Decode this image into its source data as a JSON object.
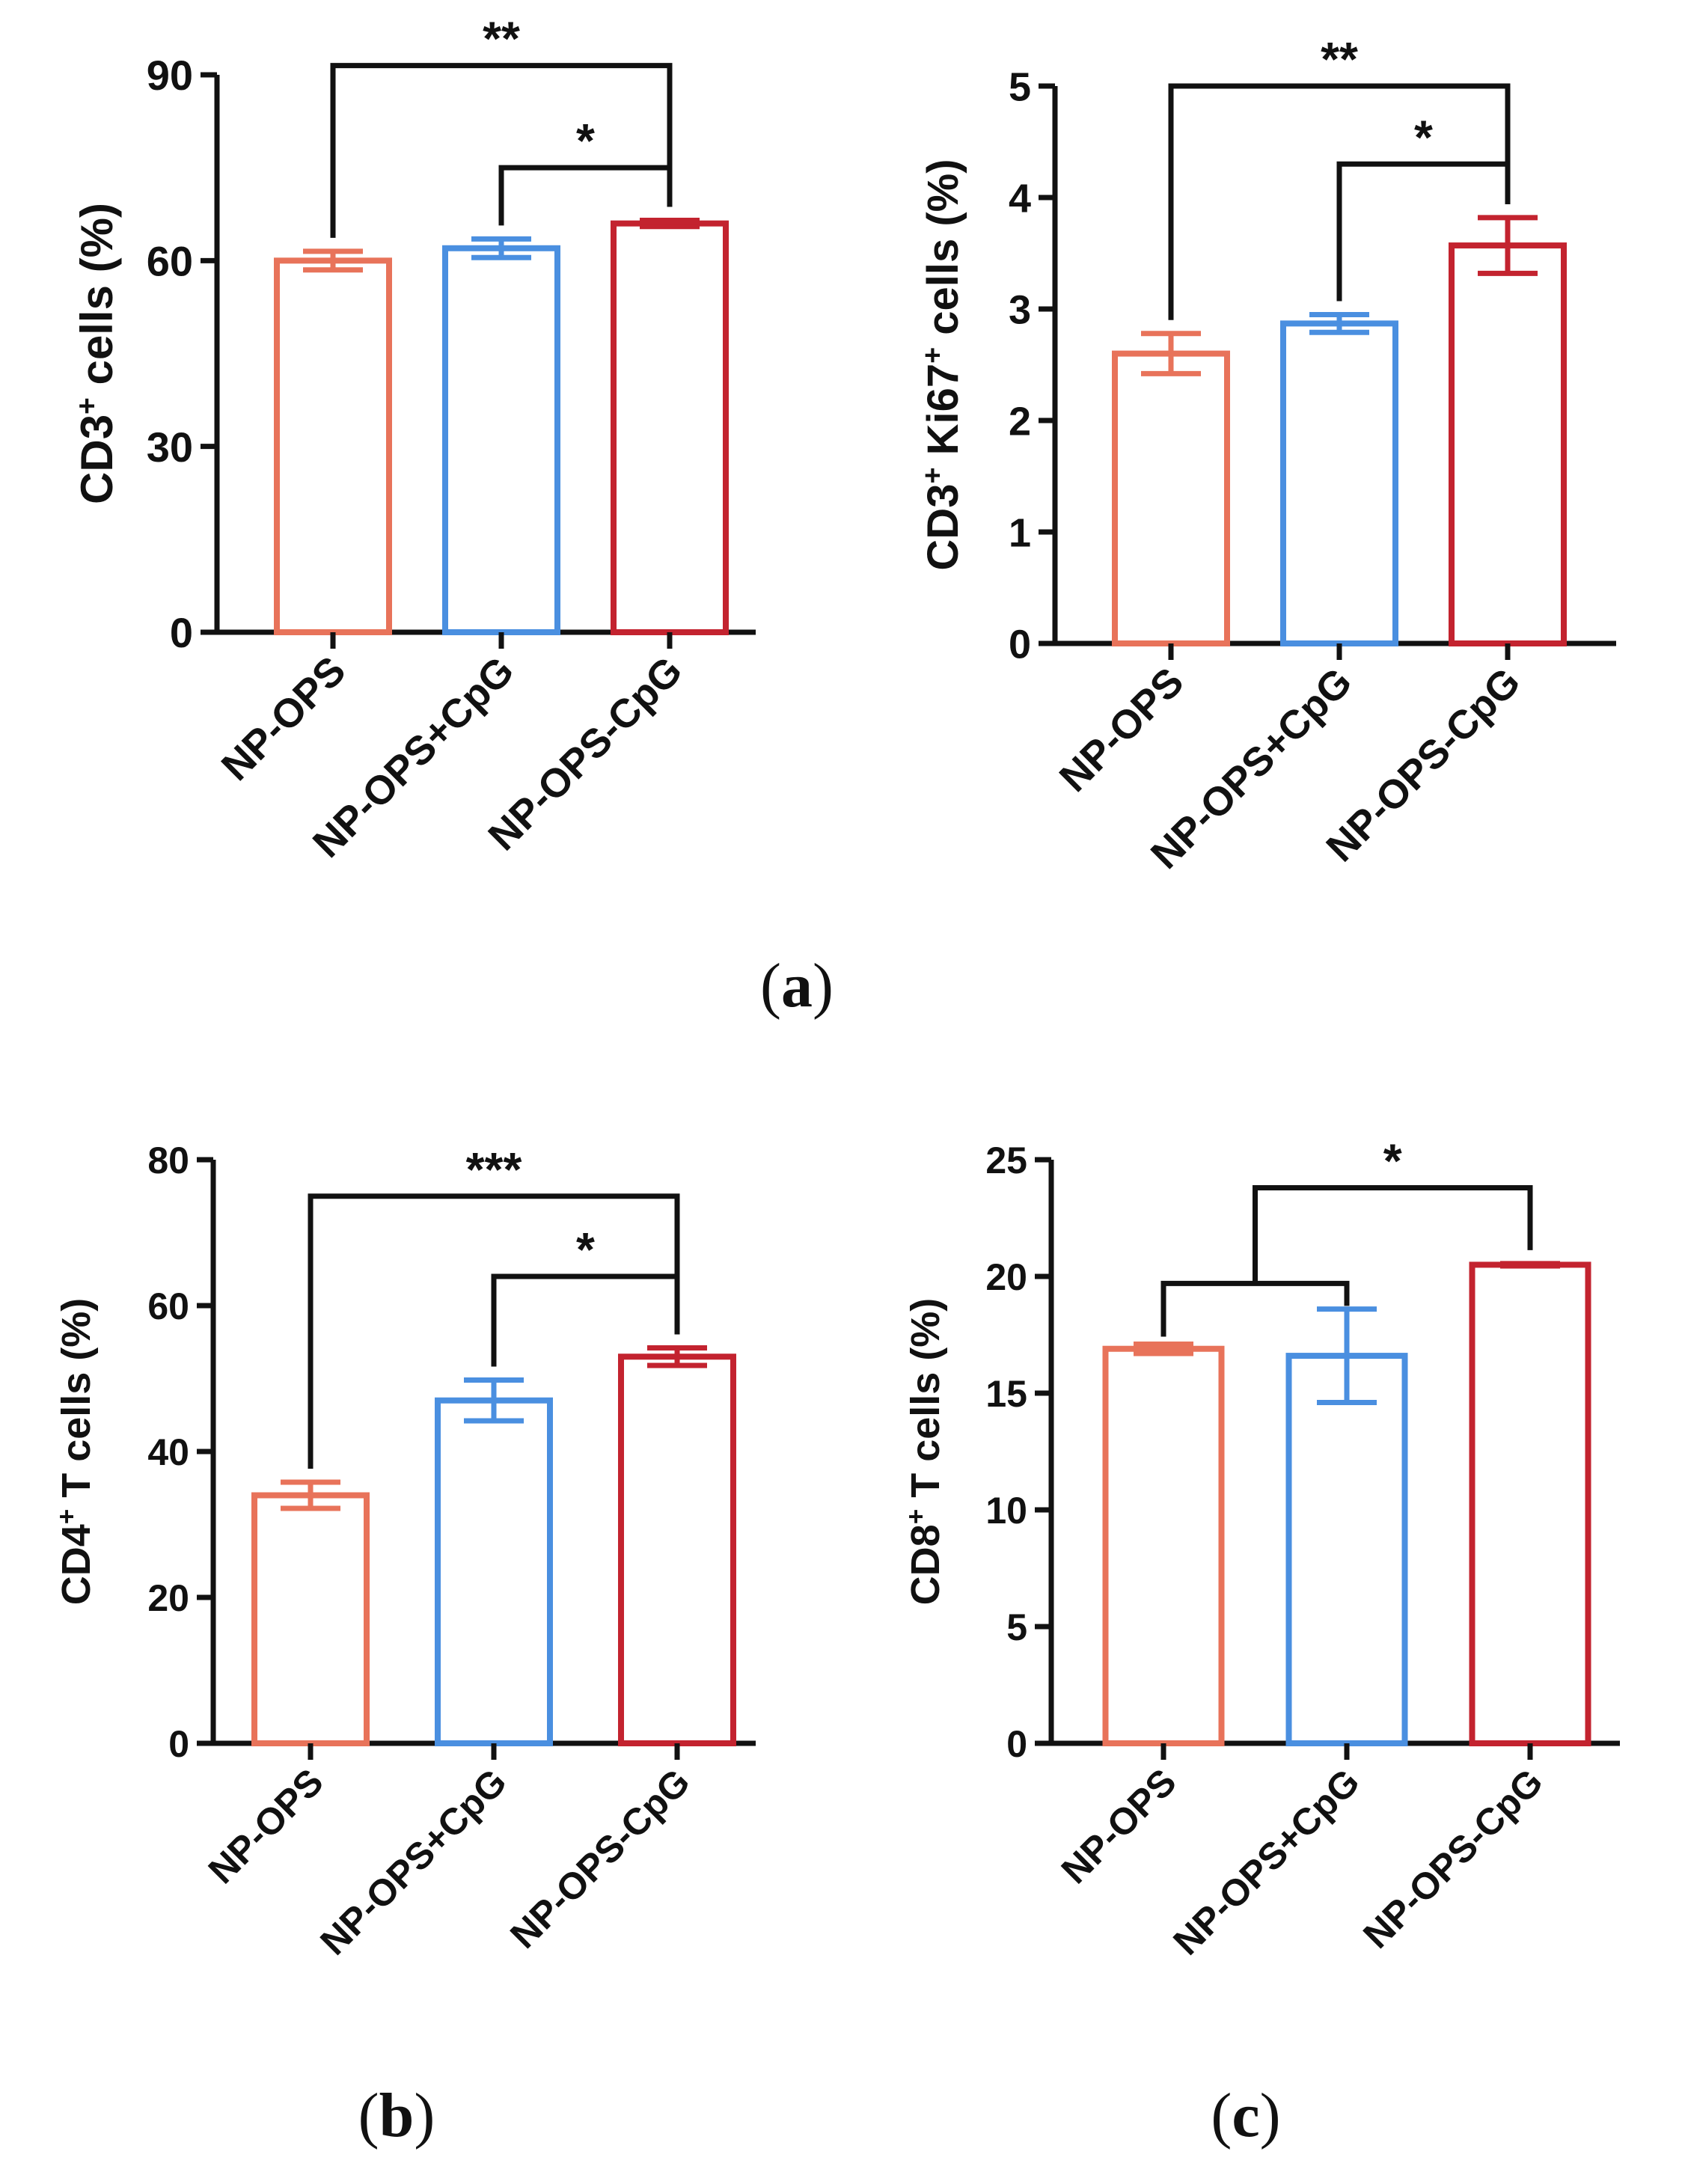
{
  "chart_data": [
    {
      "type": "bar",
      "ylabel_main": "CD3",
      "ylabel_sup": "+",
      "ylabel_rest": " cells (%)",
      "categories": [
        "NP-OPS",
        "NP-OPS+CpG",
        "NP-OPS-CpG"
      ],
      "values": [
        60,
        62,
        66
      ],
      "errors": [
        1.5,
        1.5,
        0.5
      ],
      "ylim": [
        0,
        90
      ],
      "yticks": [
        0,
        30,
        60,
        90
      ],
      "colors": [
        "#E8735A",
        "#4A8FE0",
        "#C3232F"
      ],
      "grid": false,
      "significance": [
        {
          "from": 0,
          "to": 2,
          "label": "**",
          "level": 91.5
        },
        {
          "from": 1,
          "to": 2,
          "label": "*",
          "level": 75
        }
      ]
    },
    {
      "type": "bar",
      "ylabel_main": "CD3",
      "ylabel_sup": "+",
      "ylabel_mid": " Ki67",
      "ylabel_sup2": "+",
      "ylabel_rest": " cells (%)",
      "categories": [
        "NP-OPS",
        "NP-OPS+CpG",
        "NP-OPS-CpG"
      ],
      "values": [
        2.6,
        2.87,
        3.57
      ],
      "errors": [
        0.18,
        0.08,
        0.25
      ],
      "ylim": [
        0,
        5
      ],
      "yticks": [
        0,
        1,
        2,
        3,
        4,
        5
      ],
      "colors": [
        "#E8735A",
        "#4A8FE0",
        "#C3232F"
      ],
      "grid": false,
      "significance": [
        {
          "from": 0,
          "to": 2,
          "label": "**",
          "level": 5
        },
        {
          "from": 1,
          "to": 2,
          "label": "*",
          "level": 4.3
        }
      ]
    },
    {
      "type": "bar",
      "ylabel_main": "CD4",
      "ylabel_sup": "+",
      "ylabel_rest": " T cells (%)",
      "categories": [
        "NP-OPS",
        "NP-OPS+CpG",
        "NP-OPS-CpG"
      ],
      "values": [
        34,
        47,
        53
      ],
      "errors": [
        1.8,
        2.8,
        1.2
      ],
      "ylim": [
        0,
        80
      ],
      "yticks": [
        0,
        20,
        40,
        60,
        80
      ],
      "colors": [
        "#E8735A",
        "#4A8FE0",
        "#C3232F"
      ],
      "grid": false,
      "significance": [
        {
          "from": 0,
          "to": 2,
          "label": "***",
          "level": 75
        },
        {
          "from": 1,
          "to": 2,
          "label": "*",
          "level": 64
        }
      ]
    },
    {
      "type": "bar",
      "ylabel_main": "CD8",
      "ylabel_sup": "+",
      "ylabel_rest": " T cells (%)",
      "categories": [
        "NP-OPS",
        "NP-OPS+CpG",
        "NP-OPS-CpG"
      ],
      "values": [
        16.9,
        16.6,
        20.5
      ],
      "errors": [
        0.2,
        2.0,
        0.05
      ],
      "ylim": [
        0,
        25
      ],
      "yticks": [
        0,
        5,
        10,
        15,
        20,
        25
      ],
      "colors": [
        "#E8735A",
        "#4A8FE0",
        "#C3232F"
      ],
      "grid": false,
      "bracket_group": {
        "from": 0,
        "to": 1,
        "level": 19.7
      },
      "significance": [
        {
          "from_group": true,
          "to": 2,
          "label": "*",
          "level": 23.8
        }
      ]
    }
  ],
  "panel_labels": [
    {
      "open": "(",
      "letter": "a",
      "close": ")"
    },
    {
      "open": "(",
      "letter": "b",
      "close": ")"
    },
    {
      "open": "(",
      "letter": "c",
      "close": ")"
    }
  ]
}
